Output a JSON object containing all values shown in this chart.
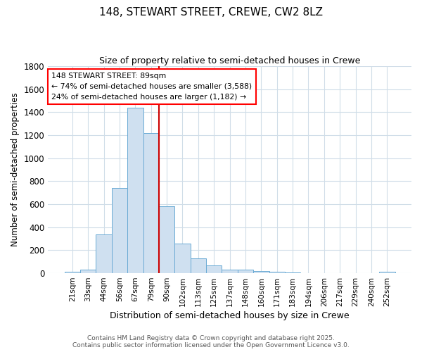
{
  "title_line1": "148, STEWART STREET, CREWE, CW2 8LZ",
  "title_line2": "Size of property relative to semi-detached houses in Crewe",
  "xlabel": "Distribution of semi-detached houses by size in Crewe",
  "ylabel": "Number of semi-detached properties",
  "categories": [
    "21sqm",
    "33sqm",
    "44sqm",
    "56sqm",
    "67sqm",
    "79sqm",
    "90sqm",
    "102sqm",
    "113sqm",
    "125sqm",
    "137sqm",
    "148sqm",
    "160sqm",
    "171sqm",
    "183sqm",
    "194sqm",
    "206sqm",
    "217sqm",
    "229sqm",
    "240sqm",
    "252sqm"
  ],
  "values": [
    10,
    30,
    340,
    740,
    1440,
    1220,
    580,
    260,
    130,
    65,
    30,
    28,
    20,
    15,
    5,
    3,
    3,
    2,
    1,
    1,
    10
  ],
  "bar_color_fill": "#cfe0f0",
  "bar_color_edge": "#6aaad4",
  "annotation_line1": "148 STEWART STREET: 89sqm",
  "annotation_line2": "← 74% of semi-detached houses are smaller (3,588)",
  "annotation_line3": "24% of semi-detached houses are larger (1,182) →",
  "ylim": [
    0,
    1800
  ],
  "yticks": [
    0,
    200,
    400,
    600,
    800,
    1000,
    1200,
    1400,
    1600,
    1800
  ],
  "fig_bg_color": "#ffffff",
  "plot_bg_color": "#ffffff",
  "grid_color": "#d0dde8",
  "vline_color": "#cc0000",
  "vline_x_index": 6,
  "footer_text": "Contains HM Land Registry data © Crown copyright and database right 2025.\nContains public sector information licensed under the Open Government Licence v3.0."
}
